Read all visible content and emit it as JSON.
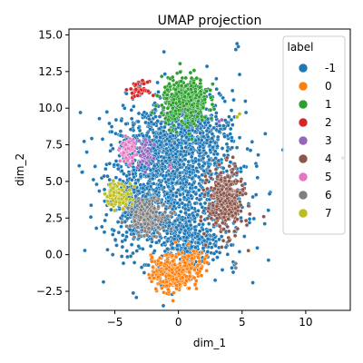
{
  "chart_data": {
    "type": "scatter",
    "title": "UMAP projection",
    "xlabel": "dim_1",
    "ylabel": "dim_2",
    "xlim": [
      -8.6,
      13.5
    ],
    "ylim": [
      -3.8,
      15.4
    ],
    "xticks": [
      -5,
      0,
      5,
      10
    ],
    "yticks": [
      -2.5,
      0.0,
      2.5,
      5.0,
      7.5,
      10.0,
      12.5,
      15.0
    ],
    "xtick_labels": [
      "−5",
      "0",
      "5",
      "10"
    ],
    "ytick_labels": [
      "−2.5",
      "0.0",
      "2.5",
      "5.0",
      "7.5",
      "10.0",
      "12.5",
      "15.0"
    ],
    "grid": false,
    "legend": {
      "title": "label",
      "placement": "top-right",
      "entries": [
        {
          "label": "-1",
          "color": "#1f77b4"
        },
        {
          "label": "0",
          "color": "#ff7f0e"
        },
        {
          "label": "1",
          "color": "#2ca02c"
        },
        {
          "label": "2",
          "color": "#d62728"
        },
        {
          "label": "3",
          "color": "#9467bd"
        },
        {
          "label": "4",
          "color": "#8c564b"
        },
        {
          "label": "5",
          "color": "#e377c2"
        },
        {
          "label": "6",
          "color": "#7f7f7f"
        },
        {
          "label": "7",
          "color": "#bcbd22"
        }
      ]
    },
    "series": [
      {
        "name": "-1",
        "color": "#1f77b4",
        "clusters": [
          {
            "cx": 0.0,
            "cy": 5.0,
            "sx": 2.6,
            "sy": 2.7,
            "n": 1300
          },
          {
            "cx": -2.0,
            "cy": 7.5,
            "sx": 1.4,
            "sy": 1.4,
            "n": 300
          },
          {
            "cx": 1.5,
            "cy": 8.5,
            "sx": 1.2,
            "sy": 1.2,
            "n": 200
          },
          {
            "cx": -3.5,
            "cy": 3.5,
            "sx": 0.9,
            "sy": 1.2,
            "n": 180
          },
          {
            "cx": 0.5,
            "cy": 1.0,
            "sx": 1.3,
            "sy": 0.8,
            "n": 220
          }
        ],
        "points": [
          [
            4.7,
            14.2
          ],
          [
            4.5,
            14.0
          ],
          [
            4.6,
            14.4
          ],
          [
            4.8,
            12.3
          ],
          [
            -7.7,
            9.7
          ],
          [
            -7.2,
            7.0
          ],
          [
            -4.9,
            9.2
          ],
          [
            3.3,
            10.9
          ],
          [
            3.5,
            10.7
          ],
          [
            3.2,
            11.0
          ],
          [
            4.4,
            9.4
          ],
          [
            -1.5,
            10.8
          ],
          [
            12.9,
            6.6
          ],
          [
            4.3,
            -0.5
          ],
          [
            4.4,
            -0.7
          ],
          [
            4.2,
            -0.9
          ],
          [
            4.3,
            -1.2
          ],
          [
            3.0,
            11.3
          ]
        ]
      },
      {
        "name": "0",
        "color": "#ff7f0e",
        "clusters": [
          {
            "cx": -0.5,
            "cy": -1.3,
            "sx": 0.8,
            "sy": 0.6,
            "n": 320
          },
          {
            "cx": 1.0,
            "cy": -0.5,
            "sx": 0.5,
            "sy": 0.5,
            "n": 80
          }
        ],
        "points": []
      },
      {
        "name": "1",
        "color": "#2ca02c",
        "clusters": [
          {
            "cx": 0.5,
            "cy": 10.4,
            "sx": 0.9,
            "sy": 0.8,
            "n": 380
          },
          {
            "cx": 1.2,
            "cy": 11.4,
            "sx": 0.5,
            "sy": 0.4,
            "n": 60
          }
        ],
        "points": []
      },
      {
        "name": "2",
        "color": "#d62728",
        "clusters": [
          {
            "cx": -3.1,
            "cy": 11.3,
            "sx": 0.35,
            "sy": 0.25,
            "n": 45
          }
        ],
        "points": []
      },
      {
        "name": "3",
        "color": "#9467bd",
        "clusters": [
          {
            "cx": -2.6,
            "cy": 6.8,
            "sx": 0.3,
            "sy": 0.5,
            "n": 45
          }
        ],
        "points": [
          [
            3.2,
            9.1
          ],
          [
            3.4,
            9.2
          ],
          [
            -0.7,
            6.1
          ]
        ]
      },
      {
        "name": "4",
        "color": "#8c564b",
        "clusters": [
          {
            "cx": 3.7,
            "cy": 3.6,
            "sx": 0.7,
            "sy": 1.1,
            "n": 360
          }
        ],
        "points": []
      },
      {
        "name": "5",
        "color": "#e377c2",
        "clusters": [
          {
            "cx": -4.0,
            "cy": 7.1,
            "sx": 0.3,
            "sy": 0.4,
            "n": 70
          }
        ],
        "points": [
          [
            -0.6,
            5.9
          ]
        ]
      },
      {
        "name": "6",
        "color": "#7f7f7f",
        "clusters": [
          {
            "cx": -2.4,
            "cy": 2.6,
            "sx": 0.8,
            "sy": 0.6,
            "n": 180
          }
        ],
        "points": [
          [
            4.5,
            -0.6
          ],
          [
            4.5,
            -0.9
          ]
        ]
      },
      {
        "name": "7",
        "color": "#bcbd22",
        "clusters": [
          {
            "cx": -4.7,
            "cy": 4.1,
            "sx": 0.5,
            "sy": 0.4,
            "n": 110
          }
        ],
        "points": [
          [
            4.8,
            9.6
          ],
          [
            4.6,
            9.4
          ]
        ]
      }
    ]
  }
}
